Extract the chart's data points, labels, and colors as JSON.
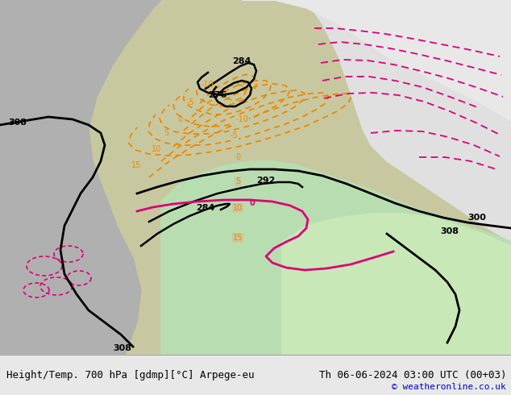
{
  "title_left": "Height/Temp. 700 hPa [gdmp][°C] Arpege-eu",
  "title_right": "Th 06-06-2024 03:00 UTC (00+03)",
  "copyright": "© weatheronline.co.uk",
  "land_color": "#c8c8a0",
  "sea_color_left": "#b0b0b0",
  "sea_color_right": "#d8d8d0",
  "green_color": "#b8ddb0",
  "bottom_bar_color": "#e8e8e8",
  "text_color": "#000000",
  "copyright_color": "#0000cc",
  "font_size_title": 9,
  "font_size_copyright": 8
}
